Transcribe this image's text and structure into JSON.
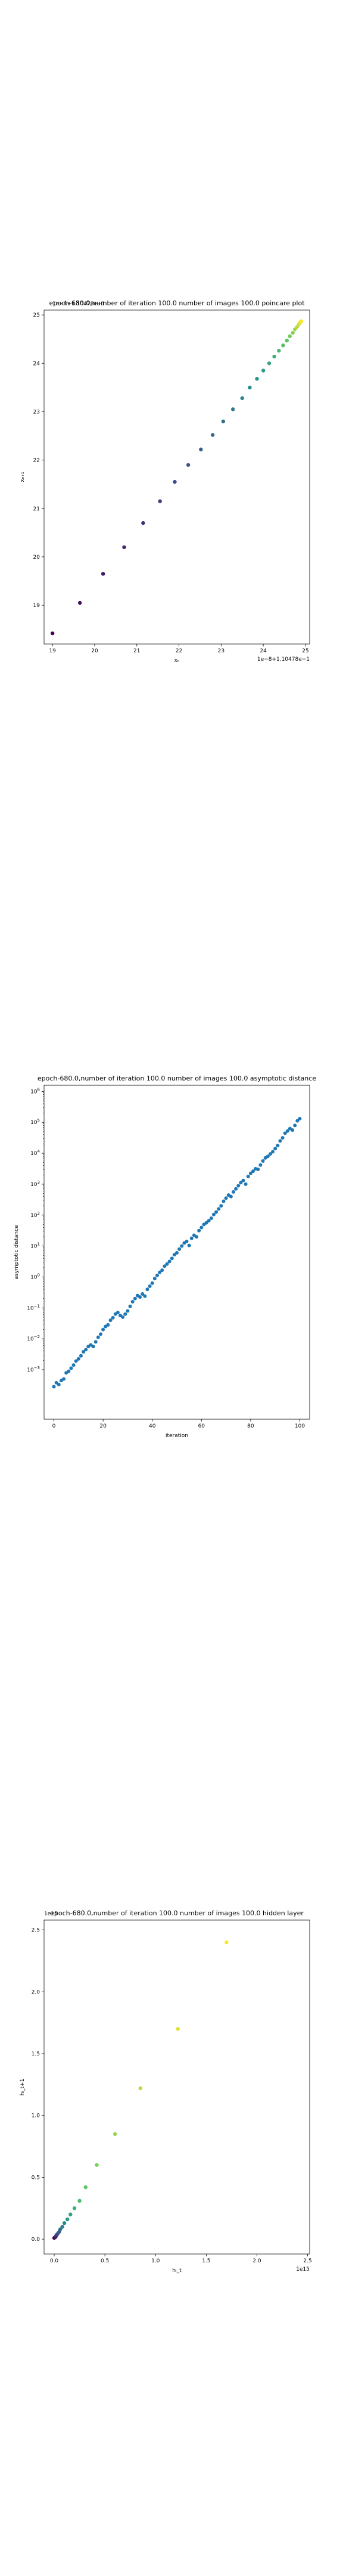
{
  "chart_data": [
    {
      "type": "scatter",
      "title": "epoch-680.0,number of iteration 100.0 number of images 100.0 poincare plot",
      "xlabel": "xₙ",
      "ylabel": "xₙ₊₁",
      "offset_x": "1e−8+1.10478e−1",
      "offset_y": "1e−8+1.10478e−1",
      "xlim": [
        18.8,
        25.1
      ],
      "ylim": [
        18.2,
        25.1
      ],
      "xticks": [
        "19",
        "20",
        "21",
        "22",
        "23",
        "24",
        "25"
      ],
      "yticks": [
        "19",
        "20",
        "21",
        "22",
        "23",
        "24",
        "25"
      ],
      "colormap": [
        "#440154",
        "#3b528b",
        "#21918c",
        "#5ec962",
        "#fde725"
      ],
      "x": [
        19.0,
        19.65,
        20.2,
        20.7,
        21.15,
        21.55,
        21.9,
        22.22,
        22.52,
        22.8,
        23.05,
        23.28,
        23.5,
        23.68,
        23.85,
        24.0,
        24.14,
        24.26,
        24.37,
        24.47,
        24.56,
        24.63,
        24.7,
        24.75,
        24.8,
        24.84,
        24.87,
        24.9
      ],
      "y": [
        18.42,
        19.05,
        19.65,
        20.2,
        20.7,
        21.15,
        21.55,
        21.9,
        22.22,
        22.52,
        22.8,
        23.05,
        23.28,
        23.5,
        23.68,
        23.85,
        24.0,
        24.14,
        24.26,
        24.37,
        24.47,
        24.56,
        24.63,
        24.7,
        24.75,
        24.8,
        24.84,
        24.87
      ]
    },
    {
      "type": "scatter",
      "title": "epoch-680.0,number of iteration 100.0  number of images 100.0 asymptotic distance",
      "xlabel": "iteration",
      "ylabel": "asymptotic distance",
      "yscale": "log",
      "xlim": [
        -4,
        104
      ],
      "ylim_exp": [
        -4.6,
        6.2
      ],
      "xticks": [
        "0",
        "20",
        "40",
        "60",
        "80",
        "100"
      ],
      "ytick_exponents": [
        -3,
        -2,
        -1,
        0,
        1,
        2,
        3,
        4,
        5,
        6
      ],
      "color": "#1f77b4",
      "x_start": 0,
      "x_step": 1,
      "log10_values": [
        -3.55,
        -3.42,
        -3.48,
        -3.35,
        -3.3,
        -3.1,
        -3.05,
        -2.95,
        -2.85,
        -2.72,
        -2.65,
        -2.55,
        -2.42,
        -2.35,
        -2.25,
        -2.2,
        -2.25,
        -2.1,
        -1.95,
        -1.85,
        -1.7,
        -1.6,
        -1.55,
        -1.4,
        -1.32,
        -1.2,
        -1.15,
        -1.25,
        -1.3,
        -1.2,
        -1.1,
        -0.95,
        -0.8,
        -0.7,
        -0.6,
        -0.65,
        -0.55,
        -0.62,
        -0.4,
        -0.3,
        -0.2,
        -0.05,
        0.05,
        0.15,
        0.22,
        0.35,
        0.42,
        0.5,
        0.6,
        0.72,
        0.78,
        0.9,
        1.0,
        1.1,
        1.15,
        1.02,
        1.25,
        1.35,
        1.3,
        1.5,
        1.6,
        1.7,
        1.75,
        1.82,
        1.9,
        2.02,
        2.1,
        2.2,
        2.3,
        2.45,
        2.55,
        2.65,
        2.6,
        2.75,
        2.85,
        2.95,
        3.05,
        3.12,
        3.0,
        3.25,
        3.35,
        3.42,
        3.5,
        3.48,
        3.62,
        3.75,
        3.85,
        3.9,
        3.98,
        4.05,
        4.15,
        4.25,
        4.4,
        4.5,
        4.65,
        4.72,
        4.8,
        4.75,
        4.9,
        5.05,
        5.12
      ]
    },
    {
      "type": "scatter",
      "title": "epoch-680.0,number of iteration 100.0  number of images 100.0 hidden layer",
      "xlabel": "hᵢ_t",
      "ylabel": "hᵢ_t+1",
      "offset_x": "1e15",
      "offset_y": "1e15",
      "xlim": [
        -0.1,
        2.52
      ],
      "ylim": [
        -0.12,
        2.58
      ],
      "xticks": [
        "0.0",
        "0.5",
        "1.0",
        "1.5",
        "2.0",
        "2.5"
      ],
      "yticks": [
        "0.0",
        "0.5",
        "1.0",
        "1.5",
        "2.0",
        "2.5"
      ],
      "colormap": [
        "#440154",
        "#3b528b",
        "#21918c",
        "#5ec962",
        "#fde725"
      ],
      "x": [
        0.0,
        0.01,
        0.015,
        0.02,
        0.03,
        0.04,
        0.05,
        0.06,
        0.08,
        0.1,
        0.13,
        0.16,
        0.2,
        0.25,
        0.31,
        0.42,
        0.6,
        0.85,
        1.22,
        1.7
      ],
      "y": [
        0.01,
        0.015,
        0.02,
        0.03,
        0.04,
        0.05,
        0.06,
        0.08,
        0.1,
        0.13,
        0.16,
        0.2,
        0.25,
        0.31,
        0.42,
        0.6,
        0.85,
        1.22,
        1.7,
        2.4
      ]
    }
  ]
}
